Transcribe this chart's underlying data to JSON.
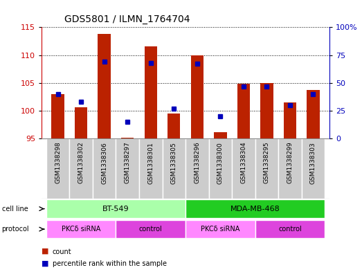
{
  "title": "GDS5801 / ILMN_1764704",
  "samples": [
    "GSM1338298",
    "GSM1338302",
    "GSM1338306",
    "GSM1338297",
    "GSM1338301",
    "GSM1338305",
    "GSM1338296",
    "GSM1338300",
    "GSM1338304",
    "GSM1338295",
    "GSM1338299",
    "GSM1338303"
  ],
  "count_values": [
    103.0,
    100.7,
    113.8,
    95.2,
    111.5,
    99.5,
    110.0,
    96.2,
    104.8,
    105.0,
    101.5,
    103.8
  ],
  "percentile_values": [
    40,
    33,
    69,
    15,
    68,
    27,
    67,
    20,
    47,
    47,
    30,
    40
  ],
  "count_base": 95.0,
  "ylim_left": [
    95,
    115
  ],
  "ylim_right": [
    0,
    100
  ],
  "yticks_left": [
    95,
    100,
    105,
    110,
    115
  ],
  "yticks_right": [
    0,
    25,
    50,
    75,
    100
  ],
  "ytick_labels_right": [
    "0",
    "25",
    "50",
    "75",
    "100%"
  ],
  "left_color": "#cc0000",
  "right_color": "#0000bb",
  "bar_color": "#bb2200",
  "dot_color": "#0000bb",
  "cell_line_groups": [
    {
      "label": "BT-549",
      "start": 0,
      "end": 5,
      "color": "#aaffaa"
    },
    {
      "label": "MDA-MB-468",
      "start": 6,
      "end": 11,
      "color": "#22cc22"
    }
  ],
  "protocol_groups": [
    {
      "label": "PKCδ siRNA",
      "start": 0,
      "end": 2,
      "color": "#ff88ff"
    },
    {
      "label": "control",
      "start": 3,
      "end": 5,
      "color": "#dd44dd"
    },
    {
      "label": "PKCδ siRNA",
      "start": 6,
      "end": 8,
      "color": "#ff88ff"
    },
    {
      "label": "control",
      "start": 9,
      "end": 11,
      "color": "#dd44dd"
    }
  ],
  "grid_color": "#000000",
  "background_color": "#ffffff",
  "plot_bg_color": "#ffffff",
  "sample_bg_color": "#cccccc",
  "bar_width": 0.55
}
